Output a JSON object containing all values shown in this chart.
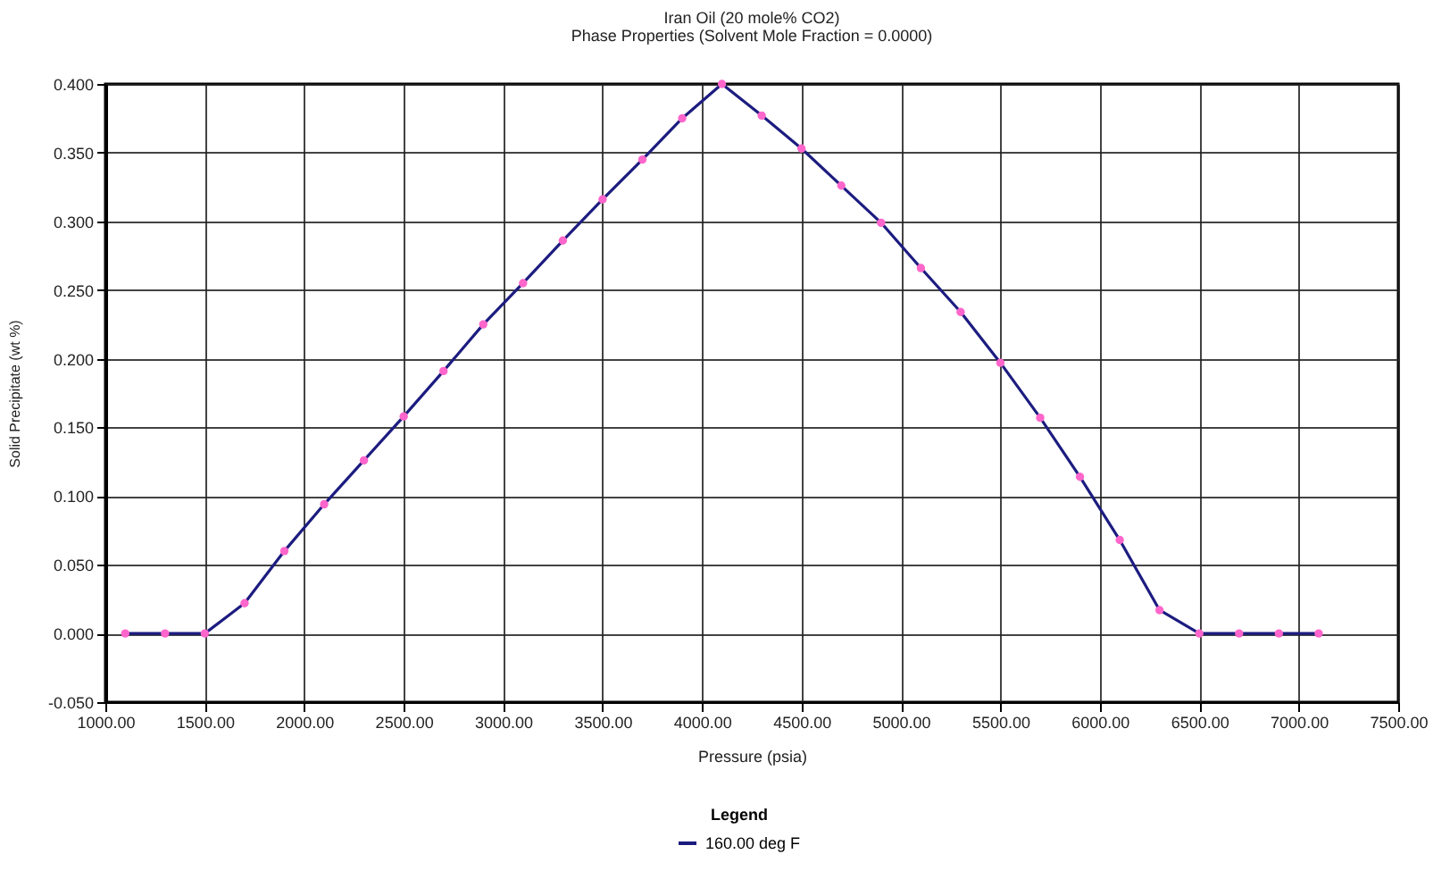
{
  "chart_data": {
    "type": "line",
    "title": "Iran Oil (20 mole% CO2)",
    "subtitle": "Phase Properties (Solvent Mole Fraction = 0.0000)",
    "xlabel": "Pressure (psia)",
    "ylabel": "Solid Precipitate (wt %)",
    "legend_title": "Legend",
    "x": [
      1100,
      1300,
      1500,
      1700,
      1900,
      2100,
      2300,
      2500,
      2700,
      2900,
      3100,
      3300,
      3500,
      3700,
      3900,
      4100,
      4300,
      4500,
      4700,
      4900,
      5100,
      5300,
      5500,
      5700,
      5900,
      6100,
      6300,
      6500,
      6700,
      6900,
      7100
    ],
    "series": [
      {
        "name": "160.00 deg F",
        "color": "#1c1c80",
        "values": [
          0,
          0,
          0,
          0.022,
          0.06,
          0.094,
          0.126,
          0.158,
          0.191,
          0.225,
          0.255,
          0.286,
          0.316,
          0.345,
          0.375,
          0.4,
          0.377,
          0.353,
          0.326,
          0.299,
          0.266,
          0.234,
          0.197,
          0.157,
          0.114,
          0.068,
          0.017,
          0,
          0,
          0,
          0
        ]
      }
    ],
    "xlim": [
      1000,
      7500
    ],
    "xticks": [
      {
        "value": 1000,
        "label": "1000.00"
      },
      {
        "value": 1500,
        "label": "1500.00"
      },
      {
        "value": 2000,
        "label": "2000.00"
      },
      {
        "value": 2500,
        "label": "2500.00"
      },
      {
        "value": 3000,
        "label": "3000.00"
      },
      {
        "value": 3500,
        "label": "3500.00"
      },
      {
        "value": 4000,
        "label": "4000.00"
      },
      {
        "value": 4500,
        "label": "4500.00"
      },
      {
        "value": 5000,
        "label": "5000.00"
      },
      {
        "value": 5500,
        "label": "5500.00"
      },
      {
        "value": 6000,
        "label": "6000.00"
      },
      {
        "value": 6500,
        "label": "6500.00"
      },
      {
        "value": 7000,
        "label": "7000.00"
      },
      {
        "value": 7500,
        "label": "7500.00"
      }
    ],
    "ylim": [
      -0.05,
      0.4
    ],
    "yticks": [
      {
        "value": -0.05,
        "label": "-0.050"
      },
      {
        "value": 0,
        "label": "0.000"
      },
      {
        "value": 0.05,
        "label": "0.050"
      },
      {
        "value": 0.1,
        "label": "0.100"
      },
      {
        "value": 0.15,
        "label": "0.150"
      },
      {
        "value": 0.2,
        "label": "0.200"
      },
      {
        "value": 0.25,
        "label": "0.250"
      },
      {
        "value": 0.3,
        "label": "0.300"
      },
      {
        "value": 0.35,
        "label": "0.350"
      },
      {
        "value": 0.4,
        "label": "0.400"
      }
    ],
    "grid": true,
    "legend": "bottom",
    "marker": "circle",
    "line_style": "solid"
  }
}
